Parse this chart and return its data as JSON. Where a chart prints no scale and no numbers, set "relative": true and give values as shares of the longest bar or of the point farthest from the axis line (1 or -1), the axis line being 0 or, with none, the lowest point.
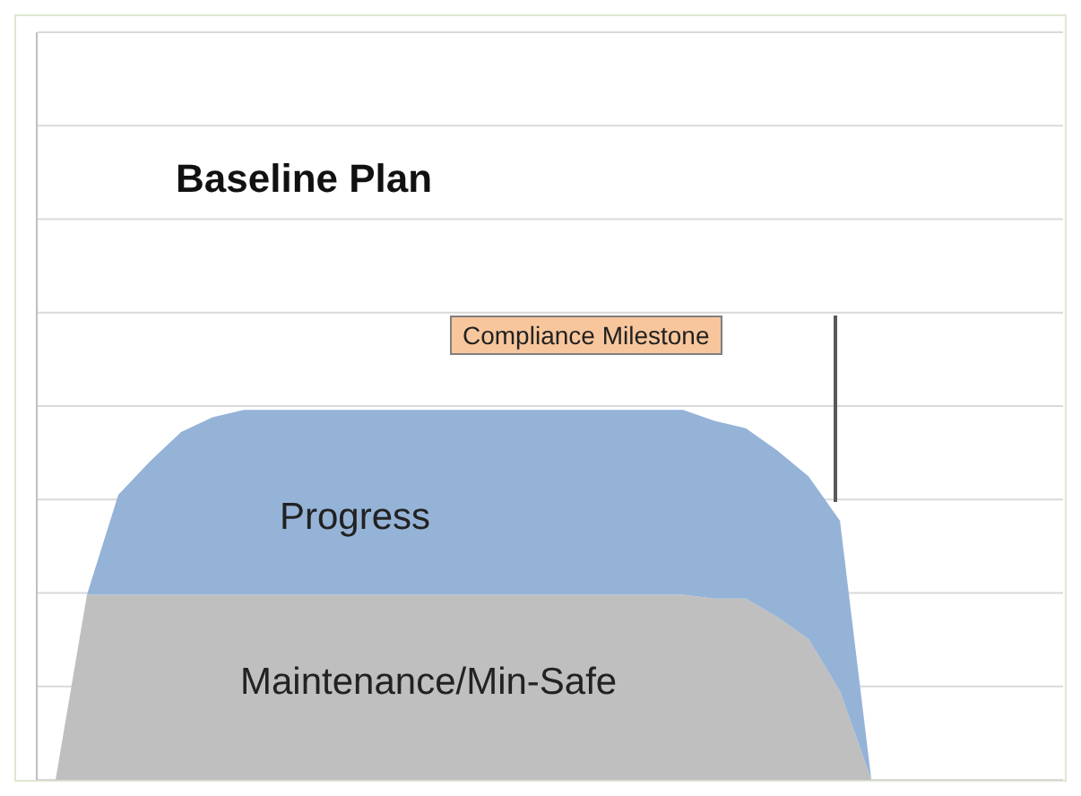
{
  "chart_data": {
    "type": "area",
    "title": "Baseline Plan",
    "stacked": true,
    "relative": true,
    "grid": "y",
    "legend": false,
    "categories": [
      null,
      null,
      null,
      null,
      null,
      null,
      null,
      null,
      null,
      null,
      null,
      null,
      null,
      null,
      null,
      null,
      null,
      null,
      null,
      null,
      null,
      null,
      null,
      null,
      null,
      null,
      null
    ],
    "series": [
      {
        "name": "Maintenance/Min-Safe",
        "color": "#bfbfbf",
        "values": [
          0,
          0.5,
          0.5,
          0.5,
          0.5,
          0.5,
          0.5,
          0.5,
          0.5,
          0.5,
          0.5,
          0.5,
          0.5,
          0.5,
          0.5,
          0.5,
          0.5,
          0.5,
          0.5,
          0.5,
          0.5,
          0.49,
          0.49,
          0.44,
          0.38,
          0.24,
          0
        ]
      },
      {
        "name": "Progress",
        "color": "#95b3d7",
        "values": [
          0,
          0,
          0.27,
          0.36,
          0.44,
          0.48,
          0.5,
          0.5,
          0.5,
          0.5,
          0.5,
          0.5,
          0.5,
          0.5,
          0.5,
          0.5,
          0.5,
          0.5,
          0.5,
          0.5,
          0.5,
          0.48,
          0.46,
          0.45,
          0.44,
          0.46,
          0
        ]
      }
    ],
    "annotations": [
      "Compliance Milestone"
    ]
  }
}
